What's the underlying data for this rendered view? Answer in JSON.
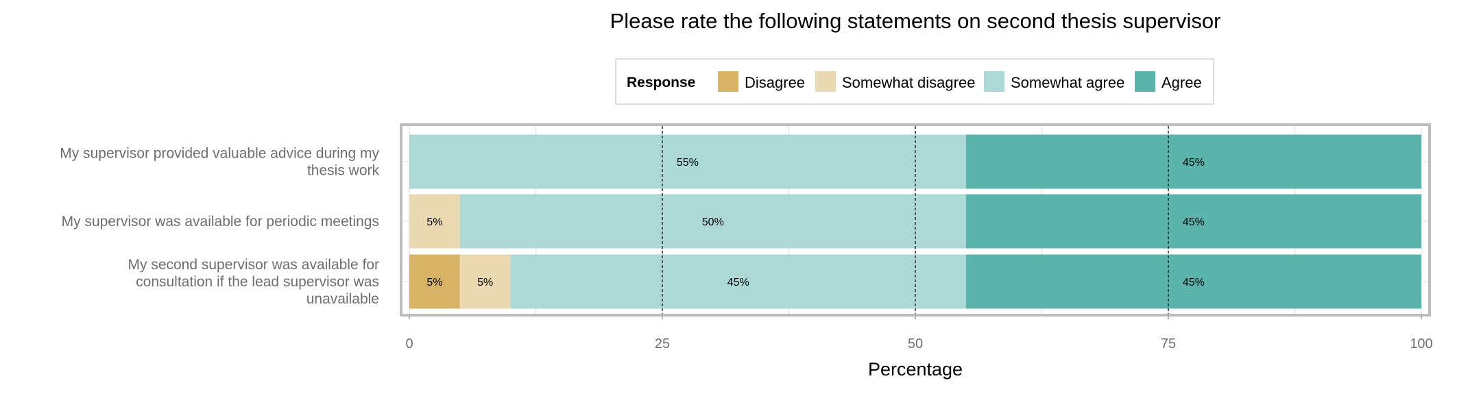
{
  "chart_data": {
    "type": "bar",
    "orientation": "horizontal",
    "stacked": true,
    "title": "Please rate the following statements on second thesis supervisor",
    "xlabel": "Percentage",
    "ylabel": "",
    "xlim": [
      0,
      100
    ],
    "xticks": [
      "0",
      "25",
      "50",
      "75",
      "100"
    ],
    "grid": true,
    "legend": {
      "title": "Response",
      "placement": "top",
      "entries": [
        "Disagree",
        "Somewhat disagree",
        "Somewhat agree",
        "Agree"
      ]
    },
    "categories": [
      [
        "My supervisor provided valuable advice during my",
        "thesis work"
      ],
      [
        "My supervisor was available for periodic meetings"
      ],
      [
        "My second supervisor was available for",
        "consultation if the lead supervisor was",
        "unavailable"
      ]
    ],
    "series": [
      {
        "name": "Disagree",
        "color": "#d8b365",
        "values": [
          0,
          0,
          5
        ],
        "labels": [
          "",
          "",
          "5%"
        ]
      },
      {
        "name": "Somewhat disagree",
        "color": "#ebd9b2",
        "values": [
          0,
          5,
          5
        ],
        "labels": [
          "",
          "5%",
          "5%"
        ]
      },
      {
        "name": "Somewhat agree",
        "color": "#acd9d5",
        "values": [
          55,
          50,
          45
        ],
        "labels": [
          "55%",
          "50%",
          "45%"
        ]
      },
      {
        "name": "Agree",
        "color": "#5ab4ac",
        "values": [
          45,
          45,
          45
        ],
        "labels": [
          "45%",
          "45%",
          "45%"
        ]
      }
    ]
  }
}
